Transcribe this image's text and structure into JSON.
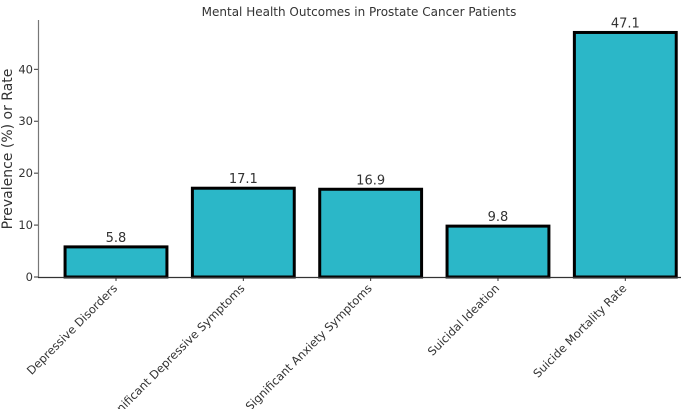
{
  "chart_data": {
    "type": "bar",
    "title": "Mental Health Outcomes in Prostate Cancer Patients",
    "xlabel": "",
    "ylabel": "Prevalence (%) or Rate",
    "categories": [
      "Depressive Disorders",
      "Significant Depressive Symptoms",
      "Significant Anxiety Symptoms",
      "Suicidal Ideation",
      "Suicide Mortality Rate"
    ],
    "values": [
      5.8,
      17.1,
      16.9,
      9.8,
      47.1
    ],
    "data_labels": [
      "5.8",
      "17.1",
      "16.9",
      "9.8",
      "47.1"
    ],
    "yticks": [
      0,
      10,
      20,
      30,
      40
    ],
    "ylim": [
      0,
      49.5
    ],
    "grid": false,
    "bar_color": "#2bb7c8",
    "edge_color": "#000000"
  }
}
